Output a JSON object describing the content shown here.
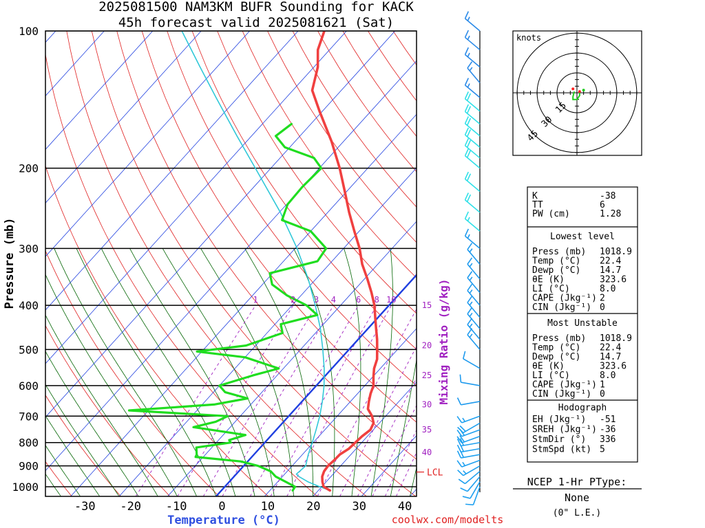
{
  "header": {
    "line1": "2025081500 NAM3KM BUFR Sounding for KACK",
    "line2": "45h forecast valid 2025081621 (Sat)"
  },
  "chart_data": {
    "type": "line",
    "chart_kind": "skew-t log-p sounding",
    "xlabel": "Temperature (°C)",
    "ylabel": "Pressure (mb)",
    "y_scale": "log",
    "y_inverted": true,
    "xlim": [
      -40,
      42
    ],
    "ylim": [
      1030,
      100
    ],
    "x_ticks": [
      -30,
      -20,
      -10,
      0,
      10,
      20,
      30,
      40
    ],
    "y_ticks": [
      100,
      200,
      300,
      400,
      500,
      600,
      700,
      800,
      900,
      1000
    ],
    "grid": true,
    "series": [
      {
        "role": "temperature",
        "color": "#f04040",
        "points": [
          [
            1019,
            22.4
          ],
          [
            1000,
            20.4
          ],
          [
            975,
            19.2
          ],
          [
            950,
            18.2
          ],
          [
            925,
            17.6
          ],
          [
            900,
            17.4
          ],
          [
            875,
            17.6
          ],
          [
            850,
            17.7
          ],
          [
            825,
            18.5
          ],
          [
            800,
            18.7
          ],
          [
            775,
            18.9
          ],
          [
            750,
            19.4
          ],
          [
            725,
            18.8
          ],
          [
            700,
            17.2
          ],
          [
            675,
            15.0
          ],
          [
            650,
            13.8
          ],
          [
            625,
            12.7
          ],
          [
            600,
            11.8
          ],
          [
            575,
            10.2
          ],
          [
            550,
            8.7
          ],
          [
            525,
            7.6
          ],
          [
            500,
            5.8
          ],
          [
            475,
            3.9
          ],
          [
            450,
            1.7
          ],
          [
            425,
            -0.6
          ],
          [
            400,
            -3.0
          ],
          [
            375,
            -6.0
          ],
          [
            350,
            -9.4
          ],
          [
            325,
            -13.2
          ],
          [
            300,
            -16.7
          ],
          [
            275,
            -21.0
          ],
          [
            250,
            -25.6
          ],
          [
            225,
            -30.4
          ],
          [
            200,
            -35.8
          ],
          [
            175,
            -42.4
          ],
          [
            150,
            -50.6
          ],
          [
            135,
            -56.0
          ],
          [
            120,
            -59.2
          ],
          [
            110,
            -62.4
          ],
          [
            100,
            -64.6
          ]
        ]
      },
      {
        "role": "dewpoint",
        "color": "#20dd20",
        "points": [
          [
            1019,
            14.7
          ],
          [
            1000,
            14.5
          ],
          [
            975,
            11.6
          ],
          [
            950,
            8.6
          ],
          [
            925,
            6.6
          ],
          [
            900,
            3.0
          ],
          [
            880,
            -1.4
          ],
          [
            860,
            -11.6
          ],
          [
            850,
            -11.8
          ],
          [
            820,
            -13.2
          ],
          [
            800,
            -7.0
          ],
          [
            790,
            -7.8
          ],
          [
            770,
            -5.4
          ],
          [
            740,
            -17.6
          ],
          [
            720,
            -14.0
          ],
          [
            700,
            -12.6
          ],
          [
            680,
            -34.0
          ],
          [
            660,
            -17.6
          ],
          [
            640,
            -11.8
          ],
          [
            620,
            -17.6
          ],
          [
            600,
            -20.0
          ],
          [
            570,
            -15.0
          ],
          [
            550,
            -11.0
          ],
          [
            520,
            -20.0
          ],
          [
            505,
            -31.0
          ],
          [
            490,
            -22.0
          ],
          [
            460,
            -16.8
          ],
          [
            440,
            -18.8
          ],
          [
            420,
            -13.0
          ],
          [
            400,
            -17.0
          ],
          [
            380,
            -23.0
          ],
          [
            360,
            -28.0
          ],
          [
            340,
            -30.6
          ],
          [
            320,
            -23.0
          ],
          [
            300,
            -23.6
          ],
          [
            275,
            -30.0
          ],
          [
            260,
            -38.0
          ],
          [
            240,
            -39.8
          ],
          [
            220,
            -40.0
          ],
          [
            200,
            -39.6
          ],
          [
            190,
            -43.0
          ],
          [
            180,
            -51.0
          ],
          [
            170,
            -55.0
          ],
          [
            160,
            -54.0
          ]
        ]
      },
      {
        "role": "parcel",
        "color": "#30c8d8",
        "points": [
          [
            1019,
            22.4
          ],
          [
            1000,
            19.6
          ],
          [
            975,
            16.2
          ],
          [
            950,
            13.4
          ],
          [
            938,
            12.4
          ],
          [
            900,
            12.8
          ],
          [
            850,
            11.2
          ],
          [
            800,
            9.8
          ],
          [
            750,
            8.2
          ],
          [
            700,
            6.4
          ],
          [
            650,
            4.2
          ],
          [
            600,
            1.6
          ],
          [
            550,
            -1.6
          ],
          [
            500,
            -5.4
          ],
          [
            450,
            -9.8
          ],
          [
            400,
            -15.2
          ],
          [
            350,
            -21.6
          ],
          [
            300,
            -29.6
          ],
          [
            250,
            -39.8
          ],
          [
            200,
            -53.2
          ],
          [
            170,
            -63.0
          ],
          [
            140,
            -74.5
          ],
          [
            120,
            -83.5
          ],
          [
            100,
            -94.0
          ]
        ]
      },
      {
        "role": "freezing isotherm",
        "color": "#2040e0",
        "temperature": 0
      }
    ],
    "mixing_ratio_labels": [
      "1",
      "2",
      "3",
      "4",
      "6",
      "8",
      "10",
      "15",
      "20",
      "25",
      "30",
      "35",
      "40"
    ],
    "mixing_ratio_title": "Mixing Ratio (g/kg)",
    "lcl": {
      "label": "LCL",
      "pressure": 938
    },
    "wind_barbs": [
      {
        "p": 1000,
        "dir": 200,
        "spd": 8
      },
      {
        "p": 975,
        "dir": 210,
        "spd": 10
      },
      {
        "p": 950,
        "dir": 220,
        "spd": 10
      },
      {
        "p": 925,
        "dir": 230,
        "spd": 12
      },
      {
        "p": 900,
        "dir": 240,
        "spd": 14
      },
      {
        "p": 875,
        "dir": 250,
        "spd": 16
      },
      {
        "p": 850,
        "dir": 260,
        "spd": 18
      },
      {
        "p": 825,
        "dir": 260,
        "spd": 18
      },
      {
        "p": 800,
        "dir": 260,
        "spd": 20
      },
      {
        "p": 775,
        "dir": 250,
        "spd": 20
      },
      {
        "p": 750,
        "dir": 250,
        "spd": 20
      },
      {
        "p": 725,
        "dir": 240,
        "spd": 20
      },
      {
        "p": 700,
        "dir": 250,
        "spd": 15
      },
      {
        "p": 650,
        "dir": 260,
        "spd": 10
      },
      {
        "p": 600,
        "dir": 280,
        "spd": 10
      },
      {
        "p": 550,
        "dir": 300,
        "spd": 12
      },
      {
        "p": 500,
        "dir": 320,
        "spd": 15
      },
      {
        "p": 475,
        "dir": 320,
        "spd": 15
      },
      {
        "p": 450,
        "dir": 320,
        "spd": 15
      },
      {
        "p": 425,
        "dir": 320,
        "spd": 15
      },
      {
        "p": 400,
        "dir": 320,
        "spd": 15
      },
      {
        "p": 375,
        "dir": 320,
        "spd": 15
      },
      {
        "p": 350,
        "dir": 320,
        "spd": 15
      },
      {
        "p": 325,
        "dir": 320,
        "spd": 15
      },
      {
        "p": 300,
        "dir": 310,
        "spd": 15
      },
      {
        "p": 275,
        "dir": 310,
        "spd": 15
      },
      {
        "p": 250,
        "dir": 310,
        "spd": 20
      },
      {
        "p": 225,
        "dir": 310,
        "spd": 20
      },
      {
        "p": 200,
        "dir": 310,
        "spd": 20
      },
      {
        "p": 190,
        "dir": 310,
        "spd": 20
      },
      {
        "p": 180,
        "dir": 310,
        "spd": 20
      },
      {
        "p": 170,
        "dir": 310,
        "spd": 20
      },
      {
        "p": 160,
        "dir": 310,
        "spd": 20
      },
      {
        "p": 150,
        "dir": 310,
        "spd": 20
      },
      {
        "p": 140,
        "dir": 310,
        "spd": 15
      },
      {
        "p": 130,
        "dir": 320,
        "spd": 15
      },
      {
        "p": 120,
        "dir": 310,
        "spd": 15
      },
      {
        "p": 110,
        "dir": 310,
        "spd": 15
      },
      {
        "p": 100,
        "dir": 310,
        "spd": 15
      }
    ],
    "hodograph": {
      "units_label": "knots",
      "ring_labels": [
        "15",
        "30",
        "45"
      ],
      "points": [
        [
          2,
          1
        ],
        [
          2,
          -2
        ],
        [
          0,
          -5
        ],
        [
          -3,
          -5
        ],
        [
          -3,
          -3
        ],
        [
          -2,
          1
        ]
      ]
    }
  },
  "indices": {
    "rows": [
      [
        "K",
        "-38"
      ],
      [
        "TT",
        "6"
      ],
      [
        "PW (cm)",
        "1.28"
      ]
    ]
  },
  "lowest_level": {
    "title": "Lowest level",
    "rows": [
      [
        "Press (mb)",
        "1018.9"
      ],
      [
        "Temp (°C)",
        "22.4"
      ],
      [
        "Dewp (°C)",
        "14.7"
      ],
      [
        "θE (K)",
        "323.6"
      ],
      [
        "LI (°C)",
        "8.0"
      ],
      [
        "CAPE (Jkg⁻¹)",
        "2"
      ],
      [
        "CIN (Jkg⁻¹)",
        "0"
      ]
    ]
  },
  "most_unstable": {
    "title": "Most Unstable",
    "rows": [
      [
        "Press (mb)",
        "1018.9"
      ],
      [
        "Temp (°C)",
        "22.4"
      ],
      [
        "Dewp (°C)",
        "14.7"
      ],
      [
        "θE (K)",
        "323.6"
      ],
      [
        "LI (°C)",
        "8.0"
      ],
      [
        "CAPE (Jkg⁻¹)",
        "1"
      ],
      [
        "CIN (Jkg⁻¹)",
        "0"
      ]
    ]
  },
  "hodograph_stats": {
    "title": "Hodograph",
    "rows": [
      [
        "EH (Jkg⁻¹)",
        "-51"
      ],
      [
        "SREH (Jkg⁻¹)",
        "-36"
      ],
      [
        "StmDir (°)",
        "336"
      ],
      [
        "StmSpd (kt)",
        "5"
      ]
    ]
  },
  "ptype": {
    "title": "NCEP 1-Hr PType:",
    "value": "None",
    "accum": "(0\" L.E.)"
  },
  "footer": {
    "url": "coolwx.com/modelts"
  },
  "colors": {
    "isotherm": "#2040e0",
    "dry_adiabat": "#e02020",
    "moist_adiabat": "#006400",
    "mixing_ratio": "#a020c0",
    "temperature": "#f04040",
    "dewpoint": "#20dd20",
    "parcel": "#30c8d8",
    "xlabel": "#3050e0",
    "hodo_wind": "#20cc20",
    "hodo_storm": "#ff2020"
  }
}
